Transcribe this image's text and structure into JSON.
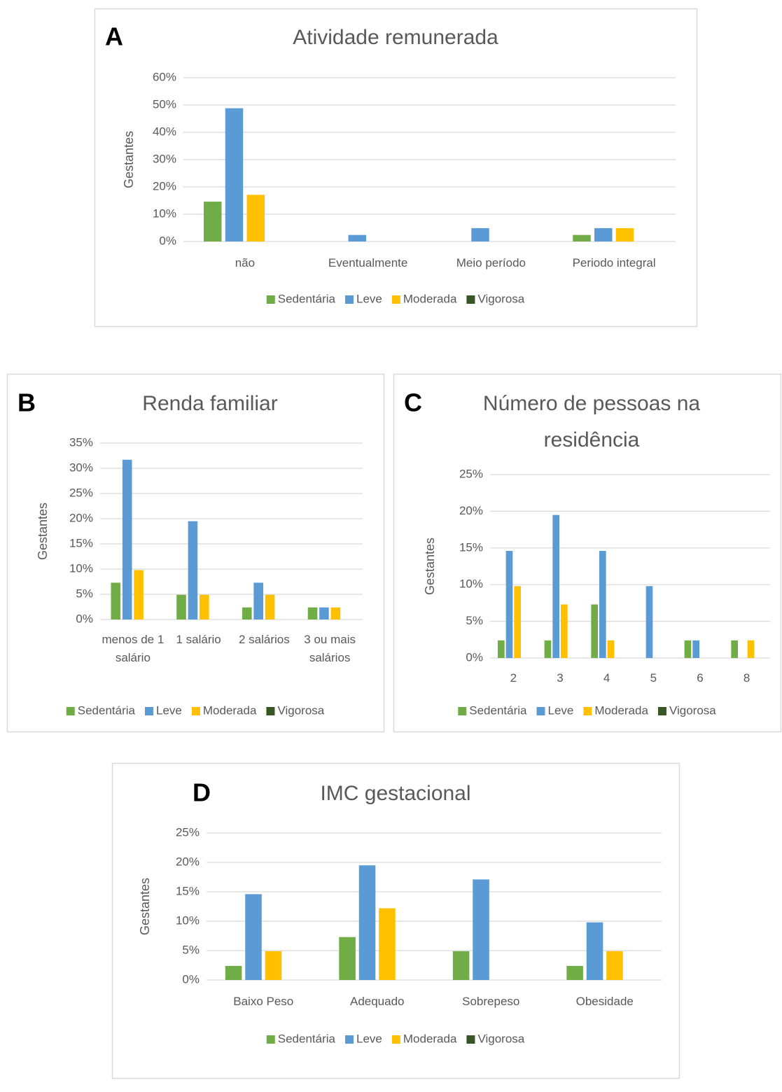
{
  "chart_data": [
    {
      "type": "bar",
      "panel": "A",
      "title": "Atividade remunerada",
      "ylabel": "Gestantes",
      "categories": [
        "não",
        "Eventualmente",
        "Meio período",
        "Periodo integral"
      ],
      "series": [
        {
          "name": "Sedentária",
          "color": "#70ad47",
          "values": [
            14.6,
            0,
            0,
            2.4
          ]
        },
        {
          "name": "Leve",
          "color": "#5b9bd5",
          "values": [
            48.8,
            2.4,
            4.9,
            4.9
          ]
        },
        {
          "name": "Moderada",
          "color": "#ffc000",
          "values": [
            17.1,
            0,
            0,
            4.9
          ]
        },
        {
          "name": "Vigorosa",
          "color": "#375623",
          "values": [
            0,
            0,
            0,
            0
          ]
        }
      ],
      "ylim": [
        0,
        60
      ],
      "yticks": [
        {
          "value": 0,
          "label": "0%"
        },
        {
          "value": 10,
          "label": "10%"
        },
        {
          "value": 20,
          "label": "20%"
        },
        {
          "value": 30,
          "label": "30%"
        },
        {
          "value": 40,
          "label": "40%"
        },
        {
          "value": 50,
          "label": "50%"
        },
        {
          "value": 60,
          "label": "60%"
        }
      ],
      "grid": true,
      "legend": "bottom"
    },
    {
      "type": "bar",
      "panel": "B",
      "title": "Renda familiar",
      "ylabel": "Gestantes",
      "categories": [
        "menos de 1 salário",
        "1 salário",
        "2 salários",
        "3 ou mais salários"
      ],
      "series": [
        {
          "name": "Sedentária",
          "color": "#70ad47",
          "values": [
            7.3,
            4.9,
            2.4,
            2.4
          ]
        },
        {
          "name": "Leve",
          "color": "#5b9bd5",
          "values": [
            31.7,
            19.5,
            7.3,
            2.4
          ]
        },
        {
          "name": "Moderada",
          "color": "#ffc000",
          "values": [
            9.8,
            4.9,
            4.9,
            2.4
          ]
        },
        {
          "name": "Vigorosa",
          "color": "#375623",
          "values": [
            0,
            0,
            0,
            0
          ]
        }
      ],
      "ylim": [
        0,
        35
      ],
      "yticks": [
        {
          "value": 0,
          "label": "0%"
        },
        {
          "value": 5,
          "label": "5%"
        },
        {
          "value": 10,
          "label": "10%"
        },
        {
          "value": 15,
          "label": "15%"
        },
        {
          "value": 20,
          "label": "20%"
        },
        {
          "value": 25,
          "label": "25%"
        },
        {
          "value": 30,
          "label": "30%"
        },
        {
          "value": 35,
          "label": "35%"
        }
      ],
      "grid": true,
      "legend": "bottom"
    },
    {
      "type": "bar",
      "panel": "C",
      "title": "Número de pessoas na residência",
      "ylabel": "Gestantes",
      "categories": [
        "2",
        "3",
        "4",
        "5",
        "6",
        "8"
      ],
      "series": [
        {
          "name": "Sedentária",
          "color": "#70ad47",
          "values": [
            2.4,
            2.4,
            7.3,
            0,
            2.4,
            2.4
          ]
        },
        {
          "name": "Leve",
          "color": "#5b9bd5",
          "values": [
            14.6,
            19.5,
            14.6,
            9.8,
            2.4,
            0
          ]
        },
        {
          "name": "Moderada",
          "color": "#ffc000",
          "values": [
            9.8,
            7.3,
            2.4,
            0,
            0,
            2.4
          ]
        },
        {
          "name": "Vigorosa",
          "color": "#375623",
          "values": [
            0,
            0,
            0,
            0,
            0,
            0
          ]
        }
      ],
      "ylim": [
        0,
        25
      ],
      "yticks": [
        {
          "value": 0,
          "label": "0%"
        },
        {
          "value": 5,
          "label": "5%"
        },
        {
          "value": 10,
          "label": "10%"
        },
        {
          "value": 15,
          "label": "15%"
        },
        {
          "value": 20,
          "label": "20%"
        },
        {
          "value": 25,
          "label": "25%"
        }
      ],
      "grid": true,
      "legend": "bottom"
    },
    {
      "type": "bar",
      "panel": "D",
      "title": "IMC gestacional",
      "ylabel": "Gestantes",
      "categories": [
        "Baixo Peso",
        "Adequado",
        "Sobrepeso",
        "Obesidade"
      ],
      "series": [
        {
          "name": "Sedentária",
          "color": "#70ad47",
          "values": [
            2.4,
            7.3,
            4.9,
            2.4
          ]
        },
        {
          "name": "Leve",
          "color": "#5b9bd5",
          "values": [
            14.6,
            19.5,
            17.1,
            9.8
          ]
        },
        {
          "name": "Moderada",
          "color": "#ffc000",
          "values": [
            4.9,
            12.2,
            0,
            4.9
          ]
        },
        {
          "name": "Vigorosa",
          "color": "#375623",
          "values": [
            0,
            0,
            0,
            0
          ]
        }
      ],
      "ylim": [
        0,
        25
      ],
      "yticks": [
        {
          "value": 0,
          "label": "0%"
        },
        {
          "value": 5,
          "label": "5%"
        },
        {
          "value": 10,
          "label": "10%"
        },
        {
          "value": 15,
          "label": "15%"
        },
        {
          "value": 20,
          "label": "20%"
        },
        {
          "value": 25,
          "label": "25%"
        }
      ],
      "grid": true,
      "legend": "bottom"
    }
  ]
}
